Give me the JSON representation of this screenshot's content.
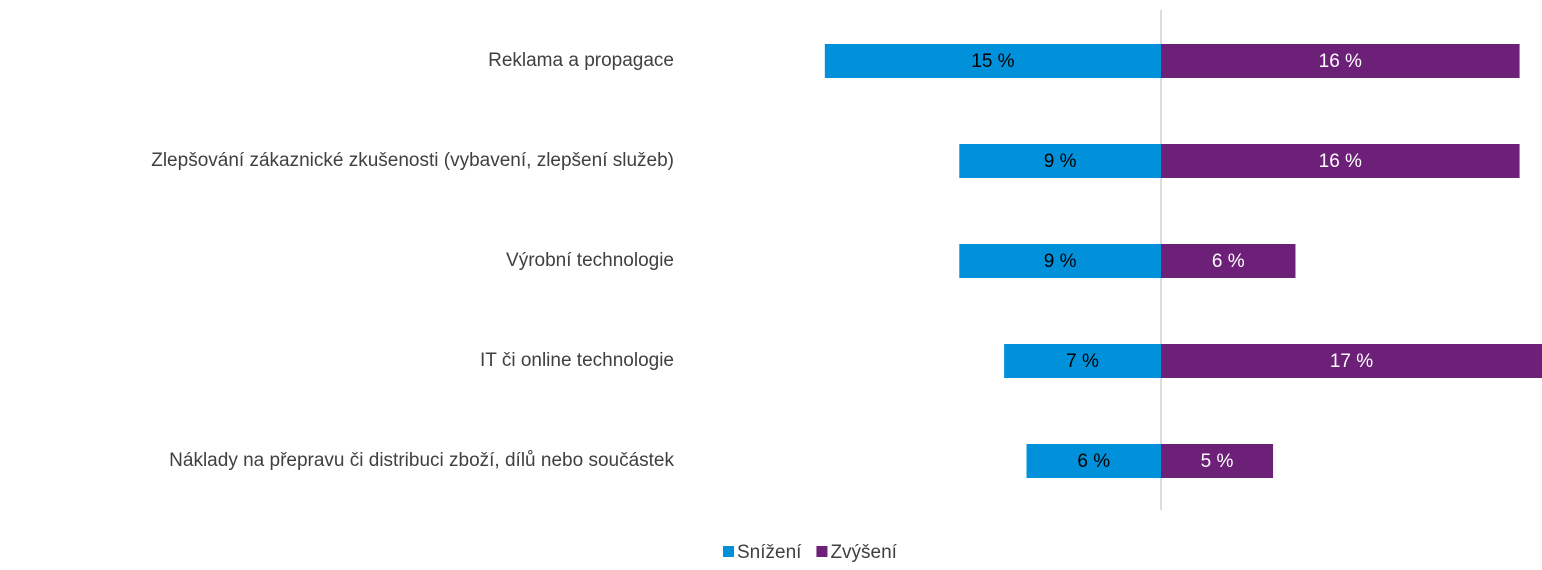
{
  "chart_data": {
    "type": "diverging-bar",
    "categories": [
      "Reklama a propagace",
      "Zlepšování zákaznické zkušenosti (vybavení, zlepšení služeb)",
      "Výrobní technologie",
      "IT či online technologie",
      "Náklady na přepravu či distribuci zboží, dílů nebo součástek"
    ],
    "series": [
      {
        "name": "Snížení",
        "color": "#0091da",
        "values": [
          15,
          9,
          9,
          7,
          6
        ],
        "value_labels": [
          "15 %",
          "9 %",
          "9 %",
          "7 %",
          "6 %"
        ]
      },
      {
        "name": "Zvýšení",
        "color": "#6d2077",
        "values": [
          16,
          16,
          6,
          17,
          5
        ],
        "value_labels": [
          "16 %",
          "16 %",
          "6 %",
          "17 %",
          "5 %"
        ]
      }
    ]
  }
}
